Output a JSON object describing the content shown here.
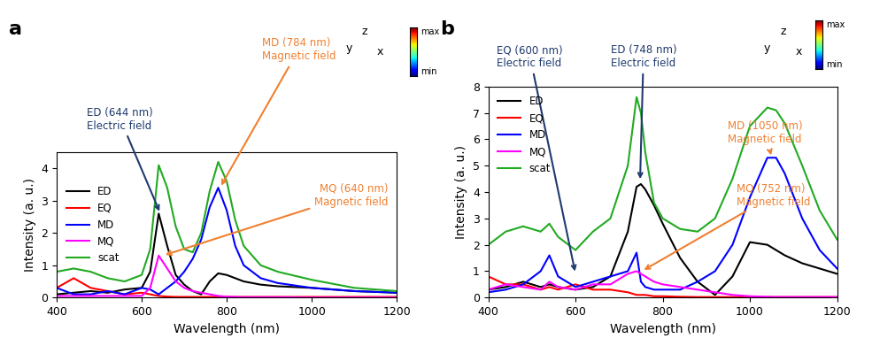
{
  "chart_data": [
    {
      "type": "line",
      "panel": "a",
      "x_label": "Wavelength (nm)",
      "y_label": "Intensity (a. u.)",
      "x": [
        400,
        440,
        480,
        520,
        560,
        600,
        620,
        640,
        660,
        680,
        700,
        720,
        740,
        760,
        780,
        800,
        820,
        840,
        880,
        920,
        1000,
        1100,
        1200
      ],
      "series": [
        {
          "name": "ED",
          "color": "#000000",
          "values": [
            0.1,
            0.15,
            0.2,
            0.15,
            0.25,
            0.3,
            0.8,
            2.6,
            1.6,
            0.7,
            0.4,
            0.2,
            0.1,
            0.5,
            0.75,
            0.7,
            0.6,
            0.5,
            0.4,
            0.35,
            0.3,
            0.2,
            0.15
          ]
        },
        {
          "name": "EQ",
          "color": "#ff0000",
          "values": [
            0.3,
            0.6,
            0.3,
            0.2,
            0.1,
            0.15,
            0.1,
            0.05,
            0.03,
            0.02,
            0.02,
            0.02,
            0.02,
            0.02,
            0.02,
            0.02,
            0.02,
            0.02,
            0.02,
            0.02,
            0.02,
            0.02,
            0.02
          ]
        },
        {
          "name": "MD",
          "color": "#0000ff",
          "values": [
            0.3,
            0.1,
            0.1,
            0.2,
            0.1,
            0.3,
            0.25,
            0.1,
            0.3,
            0.5,
            0.8,
            1.2,
            1.8,
            2.8,
            3.4,
            2.7,
            1.6,
            1.0,
            0.6,
            0.45,
            0.3,
            0.2,
            0.15
          ]
        },
        {
          "name": "MQ",
          "color": "#ff00ff",
          "values": [
            0.05,
            0.05,
            0.05,
            0.05,
            0.05,
            0.05,
            0.3,
            1.3,
            0.9,
            0.5,
            0.3,
            0.2,
            0.15,
            0.1,
            0.05,
            0.03,
            0.02,
            0.01,
            0.01,
            0.01,
            0.0,
            0.0,
            0.0
          ]
        },
        {
          "name": "scat",
          "color": "#22aa22",
          "values": [
            0.8,
            0.9,
            0.8,
            0.6,
            0.5,
            0.7,
            1.5,
            4.1,
            3.4,
            2.2,
            1.5,
            1.4,
            2.0,
            3.3,
            4.2,
            3.6,
            2.4,
            1.6,
            1.0,
            0.8,
            0.55,
            0.3,
            0.2
          ]
        }
      ],
      "xlim": [
        400,
        1200
      ],
      "xticks": [
        400,
        600,
        800,
        1000,
        1200
      ],
      "ylim": [
        0,
        4.5
      ],
      "yticks": [
        0,
        1,
        2,
        3,
        4
      ],
      "legend": "center left",
      "annotations": [
        {
          "text": "ED (644 nm)\nElectric field",
          "x": 644,
          "y": 2.6,
          "color": "#1f3a6e"
        },
        {
          "text": "MD (784 nm)\nMagnetic field",
          "x": 784,
          "y": 3.4,
          "color": "#f08030"
        },
        {
          "text": "MQ (640 nm)\nMagnetic field",
          "x": 650,
          "y": 1.3,
          "color": "#f08030"
        }
      ],
      "colorbar_labels": [
        "max",
        "min"
      ],
      "axis_triad": [
        "y",
        "z",
        "x"
      ]
    },
    {
      "type": "line",
      "panel": "b",
      "x_label": "Wavelength (nm)",
      "y_label": "Intensity (a. u.)",
      "x": [
        400,
        440,
        480,
        520,
        540,
        560,
        600,
        640,
        680,
        720,
        740,
        750,
        760,
        780,
        800,
        840,
        880,
        920,
        960,
        1000,
        1040,
        1060,
        1080,
        1120,
        1160,
        1200
      ],
      "series": [
        {
          "name": "ED",
          "color": "#000000",
          "values": [
            0.3,
            0.4,
            0.6,
            0.4,
            0.5,
            0.4,
            0.3,
            0.4,
            0.8,
            2.5,
            4.2,
            4.3,
            4.1,
            3.5,
            2.8,
            1.5,
            0.6,
            0.1,
            0.8,
            2.1,
            2.0,
            1.8,
            1.6,
            1.3,
            1.1,
            0.9
          ]
        },
        {
          "name": "EQ",
          "color": "#ff0000",
          "values": [
            0.8,
            0.5,
            0.5,
            0.3,
            0.4,
            0.3,
            0.5,
            0.3,
            0.3,
            0.2,
            0.1,
            0.1,
            0.1,
            0.05,
            0.05,
            0.03,
            0.02,
            0.02,
            0.02,
            0.02,
            0.02,
            0.02,
            0.02,
            0.02,
            0.02,
            0.02
          ]
        },
        {
          "name": "MD",
          "color": "#0000ff",
          "values": [
            0.2,
            0.3,
            0.5,
            1.0,
            1.6,
            0.8,
            0.4,
            0.6,
            0.8,
            1.0,
            1.7,
            0.6,
            0.4,
            0.3,
            0.3,
            0.3,
            0.6,
            1.0,
            2.0,
            3.8,
            5.3,
            5.3,
            4.7,
            3.0,
            1.8,
            1.1
          ]
        },
        {
          "name": "MQ",
          "color": "#ff00ff",
          "values": [
            0.3,
            0.5,
            0.4,
            0.3,
            0.6,
            0.4,
            0.3,
            0.5,
            0.5,
            0.9,
            1.0,
            0.9,
            0.8,
            0.6,
            0.5,
            0.4,
            0.3,
            0.2,
            0.1,
            0.05,
            0.03,
            0.02,
            0.02,
            0.02,
            0.02,
            0.02
          ]
        },
        {
          "name": "scat",
          "color": "#22aa22",
          "values": [
            2.0,
            2.5,
            2.7,
            2.5,
            2.8,
            2.3,
            1.8,
            2.5,
            3.0,
            5.0,
            7.6,
            7.0,
            5.5,
            3.6,
            3.0,
            2.6,
            2.5,
            3.0,
            4.5,
            6.5,
            7.2,
            7.1,
            6.6,
            5.0,
            3.3,
            2.2
          ]
        }
      ],
      "xlim": [
        400,
        1200
      ],
      "xticks": [
        400,
        600,
        800,
        1000,
        1200
      ],
      "ylim": [
        0,
        8
      ],
      "yticks": [
        0,
        1,
        2,
        3,
        4,
        5,
        6,
        7,
        8
      ],
      "legend": "upper left",
      "annotations": [
        {
          "text": "EQ (600 nm)\nElectric field",
          "x": 600,
          "y": 0.9,
          "color": "#1f3a6e"
        },
        {
          "text": "ED (748 nm)\nElectric field",
          "x": 748,
          "y": 4.4,
          "color": "#1f3a6e"
        },
        {
          "text": "MD (1050 nm)\nMagnetic field",
          "x": 1050,
          "y": 5.3,
          "color": "#f08030"
        },
        {
          "text": "MQ (752 nm)\nMagnetic field",
          "x": 752,
          "y": 1.0,
          "color": "#f08030"
        }
      ],
      "colorbar_labels": [
        "max",
        "min"
      ],
      "axis_triad": [
        "y",
        "z",
        "x"
      ]
    }
  ]
}
